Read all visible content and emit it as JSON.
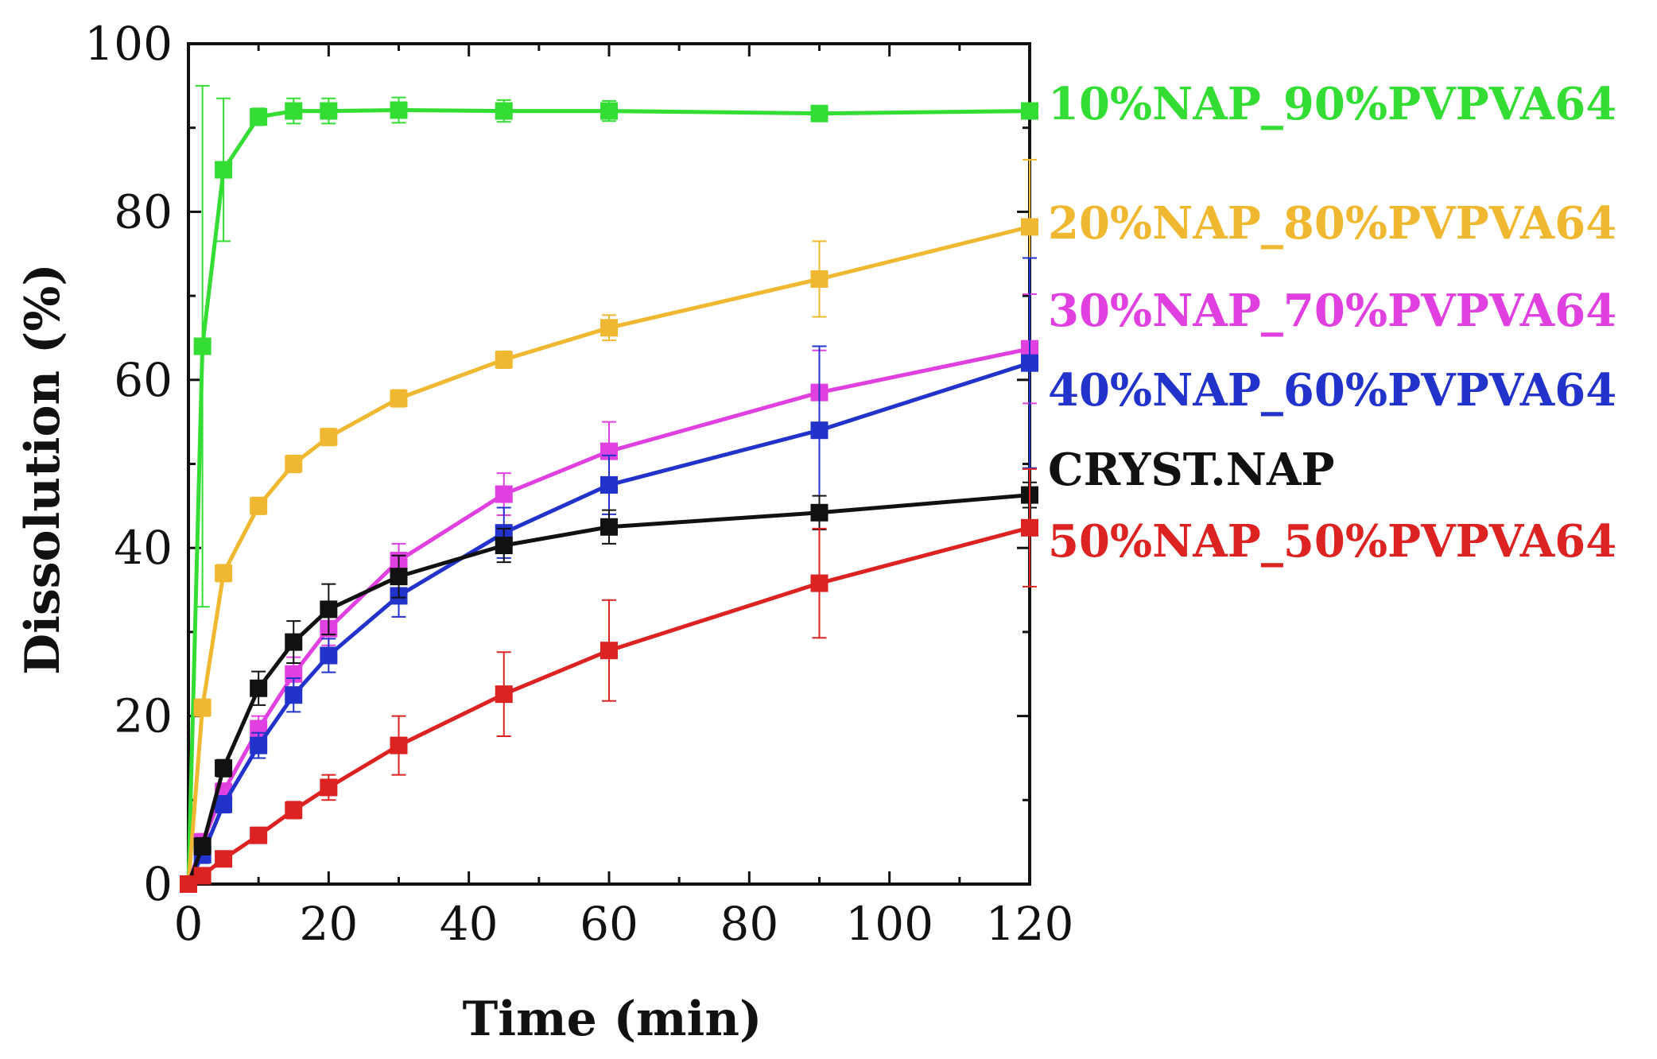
{
  "chart_data": {
    "type": "line",
    "title": "",
    "xlabel": "Time (min)",
    "ylabel": "Dissolution (%)",
    "xlim": [
      0,
      120
    ],
    "ylim": [
      0,
      100
    ],
    "xticks": [
      0,
      20,
      40,
      60,
      80,
      100,
      120
    ],
    "yticks": [
      0,
      20,
      40,
      60,
      80,
      100
    ],
    "x": [
      0,
      2,
      5,
      10,
      15,
      20,
      30,
      45,
      60,
      90,
      120
    ],
    "legend_position": "right",
    "series": [
      {
        "name": "10%NAP_90%PVPVA64",
        "color": "#33dd33",
        "values": [
          0,
          64,
          85,
          91.3,
          92,
          92,
          92.1,
          92,
          92,
          91.7,
          92
        ],
        "errors": [
          0,
          31,
          8.5,
          1,
          1.5,
          1.5,
          1.5,
          1.3,
          1.2,
          0.8,
          0.8
        ]
      },
      {
        "name": "20%NAP_80%PVPVA64",
        "color": "#f0b830",
        "values": [
          0,
          21,
          37,
          45,
          50,
          53.2,
          57.8,
          62.4,
          66.2,
          72,
          78.2
        ],
        "errors": [
          0,
          1,
          1,
          1,
          1,
          1,
          1,
          1,
          1.5,
          4.5,
          8
        ]
      },
      {
        "name": "30%NAP_70%PVPVA64",
        "color": "#e040e0",
        "values": [
          0,
          5,
          11,
          18.5,
          25,
          30.4,
          38.5,
          46.4,
          51.5,
          58.5,
          63.7
        ],
        "errors": [
          0,
          1,
          1,
          1.5,
          2,
          2,
          2,
          2.5,
          3.5,
          5,
          6.5
        ]
      },
      {
        "name": "40%NAP_60%PVPVA64",
        "color": "#2233cc",
        "values": [
          0,
          3.5,
          9.5,
          16.5,
          22.5,
          27.2,
          34.3,
          41.8,
          47.5,
          54,
          62
        ],
        "errors": [
          0,
          1,
          1,
          1.5,
          2,
          2,
          2.5,
          3,
          3.5,
          10,
          12.5
        ]
      },
      {
        "name": "CRYST.NAP",
        "color": "#111111",
        "values": [
          0,
          4.5,
          13.8,
          23.3,
          28.8,
          32.7,
          36.6,
          40.3,
          42.5,
          44.2,
          46.3
        ],
        "errors": [
          0,
          1,
          1,
          2,
          2.5,
          3,
          2.5,
          2,
          2,
          2,
          1.5
        ]
      },
      {
        "name": "50%NAP_50%PVPVA64",
        "color": "#dd2222",
        "values": [
          0,
          1,
          3,
          5.8,
          8.8,
          11.5,
          16.5,
          22.6,
          27.8,
          35.8,
          42.4
        ],
        "errors": [
          0,
          0.5,
          0.5,
          0.7,
          1,
          1.5,
          3.5,
          5,
          6,
          6.5,
          7
        ]
      }
    ]
  }
}
